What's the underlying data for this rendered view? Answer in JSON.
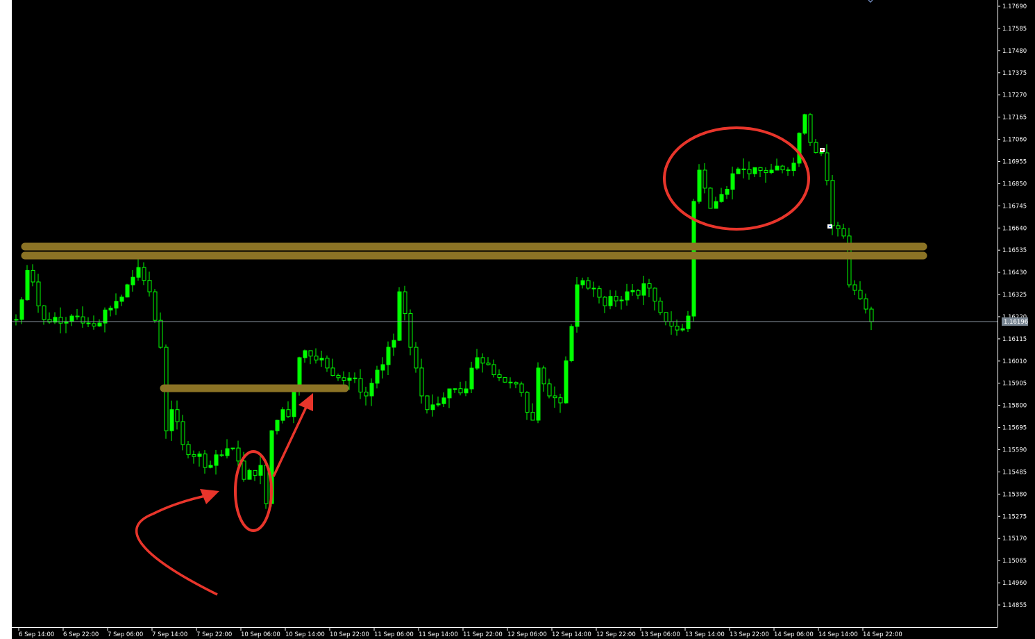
{
  "chart_data": {
    "type": "candlestick",
    "symbol_timeframe": "H1",
    "colors": {
      "background": "#000000",
      "candle": "#00ff00",
      "axis": "#ffffff",
      "current_price_line": "#8a95a0",
      "current_price_box": "#7a8794",
      "support_band": "#8b7325",
      "annotation": "#e8352b"
    },
    "ylim": [
      1.14855,
      1.1769
    ],
    "y_ticks": [
      "1.17690",
      "1.17585",
      "1.17480",
      "1.17375",
      "1.17270",
      "1.17165",
      "1.17060",
      "1.16955",
      "1.16850",
      "1.16745",
      "1.16640",
      "1.16535",
      "1.16430",
      "1.16325",
      "1.16220",
      "1.16115",
      "1.16010",
      "1.15905",
      "1.15800",
      "1.15695",
      "1.15590",
      "1.15485",
      "1.15380",
      "1.15275",
      "1.15170",
      "1.15065",
      "1.14960",
      "1.14855"
    ],
    "x_ticks": [
      "6 Sep 14:00",
      "6 Sep 22:00",
      "7 Sep 06:00",
      "7 Sep 14:00",
      "7 Sep 22:00",
      "10 Sep 06:00",
      "10 Sep 14:00",
      "10 Sep 22:00",
      "11 Sep 06:00",
      "11 Sep 14:00",
      "11 Sep 22:00",
      "12 Sep 06:00",
      "12 Sep 14:00",
      "12 Sep 22:00",
      "13 Sep 06:00",
      "13 Sep 14:00",
      "13 Sep 22:00",
      "14 Sep 06:00",
      "14 Sep 14:00",
      "14 Sep 22:00"
    ],
    "current_price": "1.16196",
    "close_path": [
      {
        "bar": 0,
        "close": 1.16207
      },
      {
        "bar": 2,
        "close": 1.16439
      },
      {
        "bar": 5,
        "close": 1.16207
      },
      {
        "bar": 10,
        "close": 1.16223
      },
      {
        "bar": 15,
        "close": 1.1619
      },
      {
        "bar": 20,
        "close": 1.16371
      },
      {
        "bar": 22,
        "close": 1.16453
      },
      {
        "bar": 24,
        "close": 1.16338
      },
      {
        "bar": 26,
        "close": 1.16075
      },
      {
        "bar": 27,
        "close": 1.1568
      },
      {
        "bar": 28,
        "close": 1.1578
      },
      {
        "bar": 30,
        "close": 1.15615
      },
      {
        "bar": 35,
        "close": 1.15516
      },
      {
        "bar": 39,
        "close": 1.15598
      },
      {
        "bar": 41,
        "close": 1.1545
      },
      {
        "bar": 44,
        "close": 1.15516
      },
      {
        "bar": 45,
        "close": 1.15335
      },
      {
        "bar": 46,
        "close": 1.1568
      },
      {
        "bar": 48,
        "close": 1.1578
      },
      {
        "bar": 49,
        "close": 1.15747
      },
      {
        "bar": 51,
        "close": 1.16026
      },
      {
        "bar": 52,
        "close": 1.16059
      },
      {
        "bar": 56,
        "close": 1.15977
      },
      {
        "bar": 61,
        "close": 1.15927
      },
      {
        "bar": 63,
        "close": 1.15845
      },
      {
        "bar": 66,
        "close": 1.15993
      },
      {
        "bar": 68,
        "close": 1.16108
      },
      {
        "bar": 69,
        "close": 1.16338
      },
      {
        "bar": 71,
        "close": 1.16075
      },
      {
        "bar": 73,
        "close": 1.15845
      },
      {
        "bar": 74,
        "close": 1.1578
      },
      {
        "bar": 78,
        "close": 1.15878
      },
      {
        "bar": 81,
        "close": 1.15878
      },
      {
        "bar": 83,
        "close": 1.16026
      },
      {
        "bar": 85,
        "close": 1.15993
      },
      {
        "bar": 88,
        "close": 1.1591
      },
      {
        "bar": 91,
        "close": 1.15861
      },
      {
        "bar": 93,
        "close": 1.1573
      },
      {
        "bar": 94,
        "close": 1.15977
      },
      {
        "bar": 96,
        "close": 1.15845
      },
      {
        "bar": 98,
        "close": 1.15812
      },
      {
        "bar": 100,
        "close": 1.16174
      },
      {
        "bar": 101,
        "close": 1.16371
      },
      {
        "bar": 103,
        "close": 1.16355
      },
      {
        "bar": 106,
        "close": 1.16272
      },
      {
        "bar": 110,
        "close": 1.16338
      },
      {
        "bar": 114,
        "close": 1.16355
      },
      {
        "bar": 116,
        "close": 1.1624
      },
      {
        "bar": 119,
        "close": 1.16157
      },
      {
        "bar": 121,
        "close": 1.16223
      },
      {
        "bar": 122,
        "close": 1.16766
      },
      {
        "bar": 123,
        "close": 1.16914
      },
      {
        "bar": 125,
        "close": 1.16733
      },
      {
        "bar": 127,
        "close": 1.16799
      },
      {
        "bar": 129,
        "close": 1.16897
      },
      {
        "bar": 132,
        "close": 1.16897
      },
      {
        "bar": 136,
        "close": 1.16914
      },
      {
        "bar": 140,
        "close": 1.16947
      },
      {
        "bar": 142,
        "close": 1.17177
      },
      {
        "bar": 143,
        "close": 1.17045
      },
      {
        "bar": 145,
        "close": 1.16996
      },
      {
        "bar": 146,
        "close": 1.16865
      },
      {
        "bar": 147,
        "close": 1.16651
      },
      {
        "bar": 149,
        "close": 1.16602
      },
      {
        "bar": 150,
        "close": 1.16371
      },
      {
        "bar": 152,
        "close": 1.16305
      },
      {
        "bar": 153,
        "close": 1.16256
      },
      {
        "bar": 154,
        "close": 1.16196
      }
    ],
    "horizontal_levels": [
      1.16545,
      1.16503,
      1.1588
    ],
    "grid": false
  }
}
